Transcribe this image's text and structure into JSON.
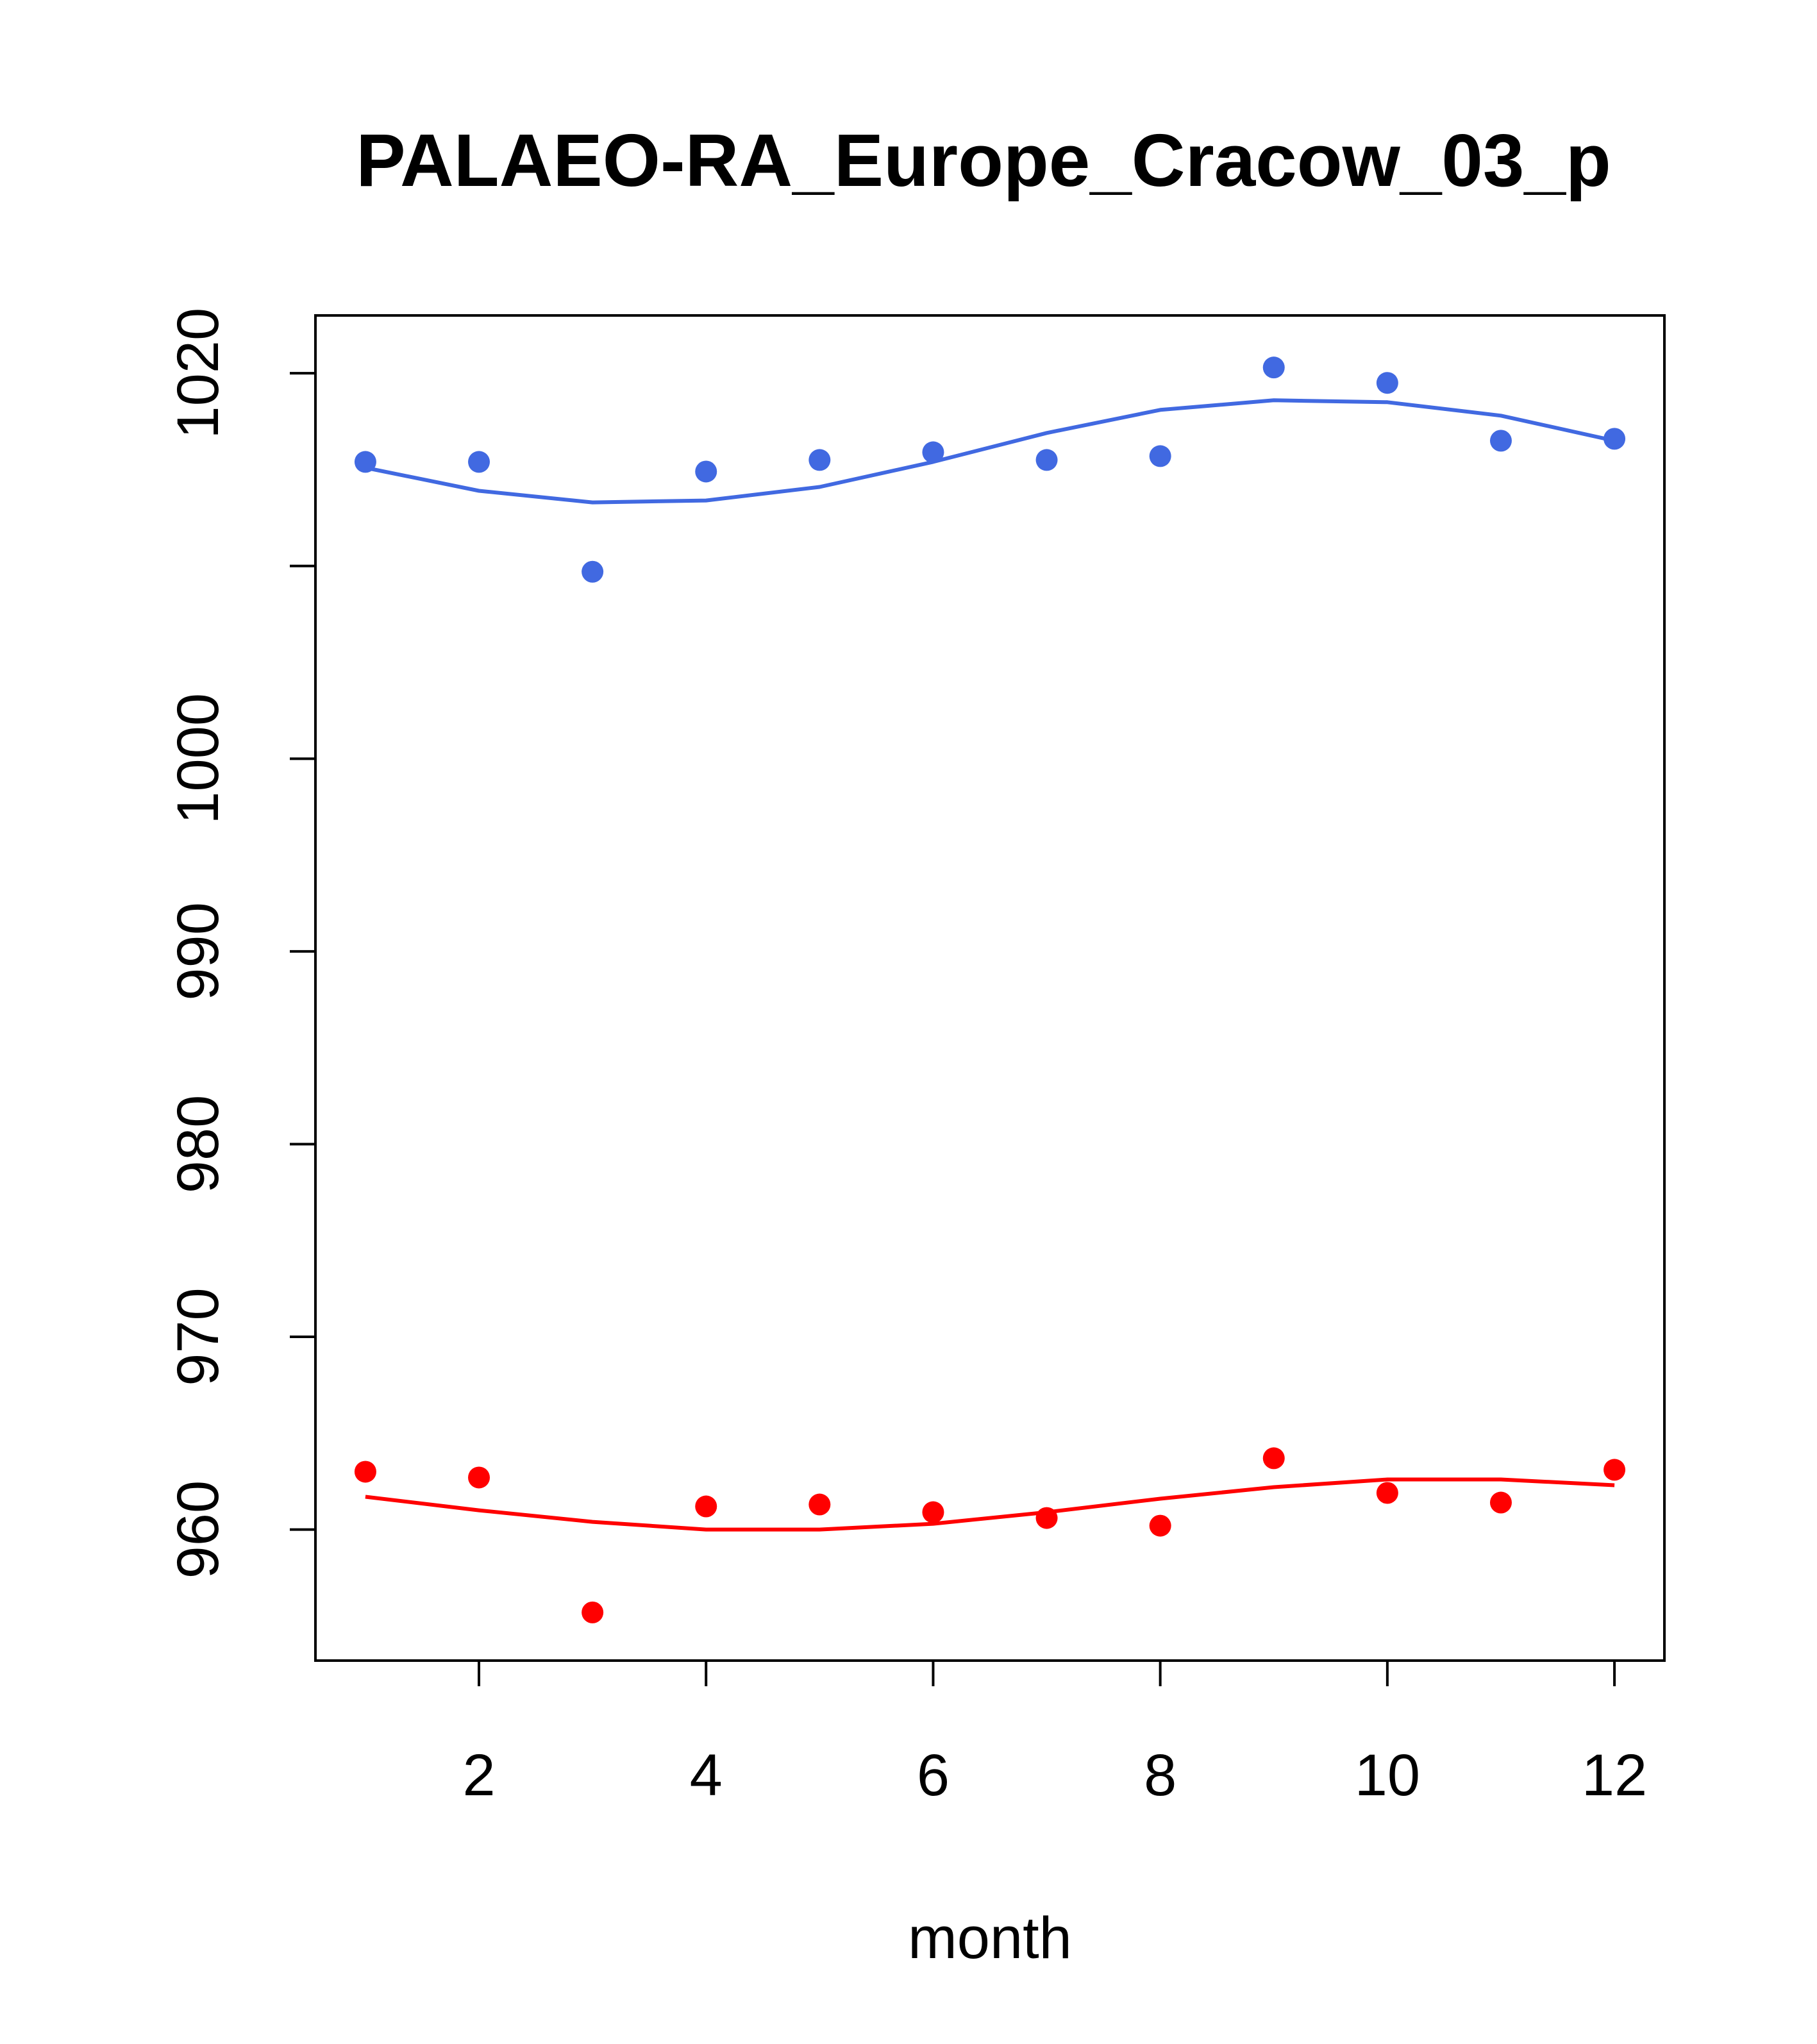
{
  "chart_data": {
    "type": "scatter",
    "title": "PALAEO-RA_Europe_Cracow_03_p",
    "xlabel": "month",
    "ylabel": "",
    "xlim": [
      0.56,
      12.44
    ],
    "ylim": [
      953.2,
      1023.0
    ],
    "x_ticks": [
      "2",
      "4",
      "6",
      "8",
      "10",
      "12"
    ],
    "y_ticks": [
      "960",
      "970",
      "980",
      "990",
      "1000",
      "",
      "1020"
    ],
    "y_tick_values": [
      960,
      970,
      980,
      990,
      1000,
      1010,
      1020
    ],
    "grid": false,
    "x": [
      1,
      2,
      3,
      4,
      5,
      6,
      7,
      8,
      9,
      10,
      11,
      12
    ],
    "series": [
      {
        "color": "#4169E1",
        "points": [
          1015.4,
          1015.4,
          1009.7,
          1014.9,
          1015.5,
          1015.9,
          1015.5,
          1015.7,
          1020.3,
          1019.5,
          1016.5,
          1016.6
        ],
        "smooth": [
          1015.1,
          1013.9,
          1013.3,
          1013.4,
          1014.1,
          1015.4,
          1016.9,
          1018.1,
          1018.6,
          1018.5,
          1017.8,
          1016.5
        ]
      },
      {
        "color": "#FF0000",
        "points": [
          963.0,
          962.7,
          955.7,
          961.2,
          961.3,
          960.9,
          960.6,
          960.2,
          963.7,
          961.9,
          961.4,
          963.1
        ],
        "smooth": [
          961.7,
          961.0,
          960.4,
          960.0,
          960.0,
          960.3,
          960.9,
          961.6,
          962.2,
          962.6,
          962.6,
          962.3
        ]
      }
    ]
  }
}
